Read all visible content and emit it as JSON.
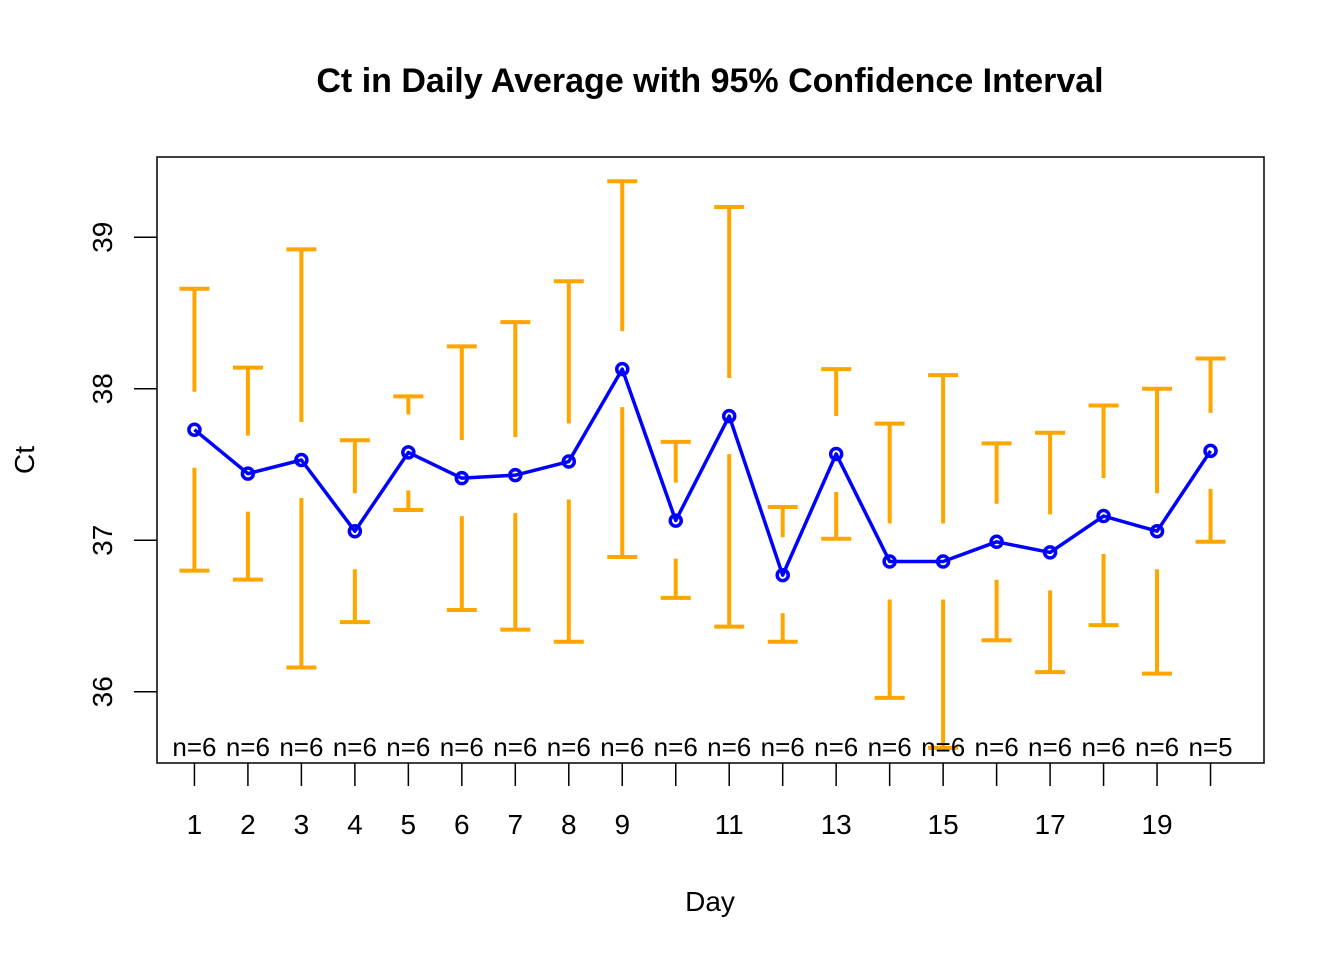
{
  "chart_data": {
    "type": "line",
    "title": "Ct in Daily Average with 95% Confidence Interval",
    "xlabel": "Day",
    "ylabel": "Ct",
    "x": [
      1,
      2,
      3,
      4,
      5,
      6,
      7,
      8,
      9,
      10,
      11,
      12,
      13,
      14,
      15,
      16,
      17,
      18,
      19,
      20
    ],
    "x_tick_labels": [
      "1",
      "2",
      "3",
      "4",
      "5",
      "6",
      "7",
      "8",
      "9",
      "11",
      "13",
      "15",
      "17",
      "19"
    ],
    "y_ticks": [
      "36",
      "37",
      "38",
      "39"
    ],
    "ylim": [
      35.53,
      39.53
    ],
    "xlim": [
      0.3,
      21.0
    ],
    "grid": false,
    "series": [
      {
        "values": [
          37.73,
          37.44,
          37.53,
          37.06,
          37.58,
          37.41,
          37.43,
          37.52,
          38.13,
          37.13,
          37.82,
          36.77,
          37.57,
          36.86,
          36.86,
          36.99,
          36.92,
          37.16,
          37.06,
          37.59
        ],
        "lower": [
          36.8,
          36.74,
          36.16,
          36.46,
          37.2,
          36.54,
          36.41,
          36.33,
          36.89,
          36.62,
          36.43,
          36.33,
          37.01,
          35.96,
          35.63,
          36.34,
          36.13,
          36.44,
          36.12,
          36.99
        ],
        "upper": [
          38.66,
          38.14,
          38.92,
          37.66,
          37.95,
          38.28,
          38.44,
          38.71,
          39.37,
          37.65,
          39.2,
          37.22,
          38.13,
          37.77,
          38.09,
          37.64,
          37.71,
          37.89,
          38.0,
          38.2
        ]
      }
    ],
    "n_labels": [
      "n=6",
      "n=6",
      "n=6",
      "n=6",
      "n=6",
      "n=6",
      "n=6",
      "n=6",
      "n=6",
      "n=6",
      "n=6",
      "n=6",
      "n=6",
      "n=6",
      "n=6",
      "n=6",
      "n=6",
      "n=6",
      "n=6",
      "n=5"
    ],
    "colors": {
      "line": "#0000ff",
      "error_bars": "#ffa500",
      "frame": "#000000"
    }
  }
}
